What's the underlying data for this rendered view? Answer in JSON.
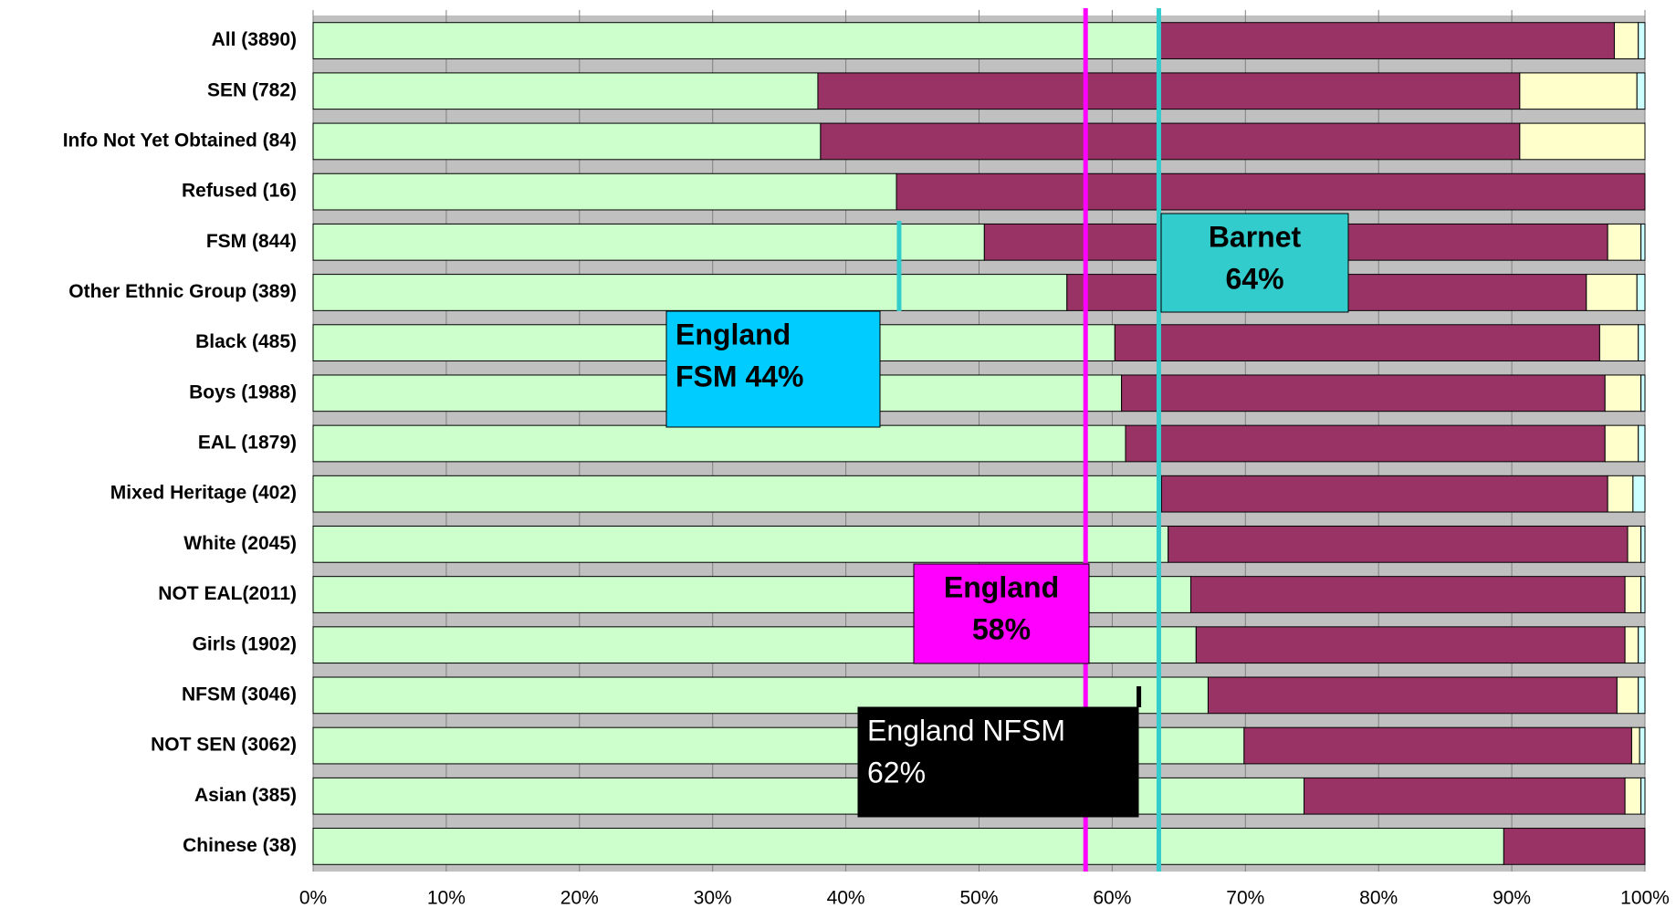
{
  "chart_data": {
    "type": "stacked_barh",
    "categories": [
      "All (3890)",
      "SEN (782)",
      "Info Not Yet Obtained (84)",
      "Refused  (16)",
      "FSM (844)",
      "Other Ethnic Group (389)",
      "Black (485)",
      "Boys (1988)",
      "EAL (1879)",
      "Mixed Heritage (402)",
      "White  (2045)",
      "NOT EAL(2011)",
      "Girls (1902)",
      "NFSM (3046)",
      "NOT SEN (3062)",
      "Asian (385)",
      "Chinese (38)"
    ],
    "series": [
      {
        "color": "#ccffcc",
        "values": [
          63.6,
          37.9,
          38.1,
          43.8,
          50.4,
          56.6,
          60.2,
          60.7,
          61.0,
          63.7,
          64.2,
          65.9,
          66.3,
          67.2,
          69.9,
          74.4,
          89.4
        ]
      },
      {
        "color": "#993366",
        "values": [
          34.1,
          52.7,
          52.5,
          56.2,
          46.8,
          39.0,
          36.4,
          36.3,
          36.0,
          33.5,
          34.5,
          32.6,
          32.2,
          30.7,
          29.1,
          24.1,
          10.6
        ]
      },
      {
        "color": "#ffffcc",
        "values": [
          1.8,
          8.8,
          9.4,
          0,
          2.5,
          3.8,
          2.9,
          2.7,
          2.5,
          1.9,
          1.0,
          1.2,
          1.0,
          1.6,
          0.6,
          1.2,
          0
        ]
      },
      {
        "color": "#ccffff",
        "values": [
          0.5,
          0.6,
          0,
          0,
          0.3,
          0.6,
          0.5,
          0.3,
          0.5,
          0.9,
          0.3,
          0.3,
          0.5,
          0.5,
          0.4,
          0.3,
          0
        ]
      }
    ],
    "xlim": [
      0,
      100
    ],
    "xticks": [
      {
        "value": 0,
        "label": "0%"
      },
      {
        "value": 10,
        "label": "10%"
      },
      {
        "value": 20,
        "label": "20%"
      },
      {
        "value": 30,
        "label": "30%"
      },
      {
        "value": 40,
        "label": "40%"
      },
      {
        "value": 50,
        "label": "50%"
      },
      {
        "value": 60,
        "label": "60%"
      },
      {
        "value": 70,
        "label": "70%"
      },
      {
        "value": 80,
        "label": "80%"
      },
      {
        "value": 90,
        "label": "90%"
      },
      {
        "value": 100,
        "label": "100%"
      }
    ],
    "grid": true,
    "annotations": [
      {
        "text": [
          "England",
          "FSM 44%"
        ],
        "value": 44,
        "color": "#00ccff",
        "line_color": "#33cccc"
      },
      {
        "text": [
          "Barnet",
          "64%"
        ],
        "value": 63.5,
        "color": "#33cccc",
        "line_color": "#33cccc"
      },
      {
        "text": [
          "England",
          "58%"
        ],
        "value": 58,
        "color": "#ff00ff",
        "line_color": "#ff00ff"
      },
      {
        "text": [
          "England NFSM",
          "62%"
        ],
        "value": 62,
        "color": "#000000",
        "line_color": "#000000"
      }
    ]
  }
}
